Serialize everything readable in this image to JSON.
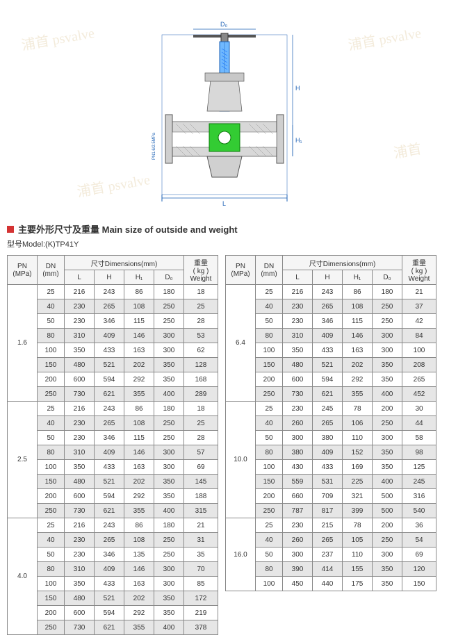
{
  "watermarks": [
    "浦首 psvalve",
    "浦首 psvalve",
    "浦首 psvalve",
    "浦首"
  ],
  "diagram": {
    "labels": {
      "L": "L",
      "H": "H",
      "H1": "H₁",
      "D0": "D₀",
      "pn": "PN1.6/2.5MPa"
    }
  },
  "heading": "主要外形尺寸及重量 Main size of outside and weight",
  "model_label": "型号Model:",
  "model_value": "(K)TP41Y",
  "table_headers": {
    "pn": "PN",
    "pn_unit": "(MPa)",
    "dn": "DN",
    "dn_unit": "(mm)",
    "dims": "尺寸Dimensions(mm)",
    "L": "L",
    "H": "H",
    "H1": "H₁",
    "D0": "D₀",
    "weight": "重量",
    "weight_unit": "( kg )",
    "weight_en": "Weight"
  },
  "left_groups": [
    {
      "pn": "1.6",
      "rows": [
        [
          "25",
          "216",
          "243",
          "86",
          "180",
          "18"
        ],
        [
          "40",
          "230",
          "265",
          "108",
          "250",
          "25"
        ],
        [
          "50",
          "230",
          "346",
          "115",
          "250",
          "28"
        ],
        [
          "80",
          "310",
          "409",
          "146",
          "300",
          "53"
        ],
        [
          "100",
          "350",
          "433",
          "163",
          "300",
          "62"
        ],
        [
          "150",
          "480",
          "521",
          "202",
          "350",
          "128"
        ],
        [
          "200",
          "600",
          "594",
          "292",
          "350",
          "168"
        ],
        [
          "250",
          "730",
          "621",
          "355",
          "400",
          "289"
        ]
      ]
    },
    {
      "pn": "2.5",
      "rows": [
        [
          "25",
          "216",
          "243",
          "86",
          "180",
          "18"
        ],
        [
          "40",
          "230",
          "265",
          "108",
          "250",
          "25"
        ],
        [
          "50",
          "230",
          "346",
          "115",
          "250",
          "28"
        ],
        [
          "80",
          "310",
          "409",
          "146",
          "300",
          "57"
        ],
        [
          "100",
          "350",
          "433",
          "163",
          "300",
          "69"
        ],
        [
          "150",
          "480",
          "521",
          "202",
          "350",
          "145"
        ],
        [
          "200",
          "600",
          "594",
          "292",
          "350",
          "188"
        ],
        [
          "250",
          "730",
          "621",
          "355",
          "400",
          "315"
        ]
      ]
    },
    {
      "pn": "4.0",
      "rows": [
        [
          "25",
          "216",
          "243",
          "86",
          "180",
          "21"
        ],
        [
          "40",
          "230",
          "265",
          "108",
          "250",
          "31"
        ],
        [
          "50",
          "230",
          "346",
          "135",
          "250",
          "35"
        ],
        [
          "80",
          "310",
          "409",
          "146",
          "300",
          "70"
        ],
        [
          "100",
          "350",
          "433",
          "163",
          "300",
          "85"
        ],
        [
          "150",
          "480",
          "521",
          "202",
          "350",
          "172"
        ],
        [
          "200",
          "600",
          "594",
          "292",
          "350",
          "219"
        ],
        [
          "250",
          "730",
          "621",
          "355",
          "400",
          "378"
        ]
      ]
    }
  ],
  "right_groups": [
    {
      "pn": "6.4",
      "rows": [
        [
          "25",
          "216",
          "243",
          "86",
          "180",
          "21"
        ],
        [
          "40",
          "230",
          "265",
          "108",
          "250",
          "37"
        ],
        [
          "50",
          "230",
          "346",
          "115",
          "250",
          "42"
        ],
        [
          "80",
          "310",
          "409",
          "146",
          "300",
          "84"
        ],
        [
          "100",
          "350",
          "433",
          "163",
          "300",
          "100"
        ],
        [
          "150",
          "480",
          "521",
          "202",
          "350",
          "208"
        ],
        [
          "200",
          "600",
          "594",
          "292",
          "350",
          "265"
        ],
        [
          "250",
          "730",
          "621",
          "355",
          "400",
          "452"
        ]
      ]
    },
    {
      "pn": "10.0",
      "rows": [
        [
          "25",
          "230",
          "245",
          "78",
          "200",
          "30"
        ],
        [
          "40",
          "260",
          "265",
          "106",
          "250",
          "44"
        ],
        [
          "50",
          "300",
          "380",
          "110",
          "300",
          "58"
        ],
        [
          "80",
          "380",
          "409",
          "152",
          "350",
          "98"
        ],
        [
          "100",
          "430",
          "433",
          "169",
          "350",
          "125"
        ],
        [
          "150",
          "559",
          "531",
          "225",
          "400",
          "245"
        ],
        [
          "200",
          "660",
          "709",
          "321",
          "500",
          "316"
        ],
        [
          "250",
          "787",
          "817",
          "399",
          "500",
          "540"
        ]
      ]
    },
    {
      "pn": "16.0",
      "rows": [
        [
          "25",
          "230",
          "215",
          "78",
          "200",
          "36"
        ],
        [
          "40",
          "260",
          "265",
          "105",
          "250",
          "54"
        ],
        [
          "50",
          "300",
          "237",
          "110",
          "300",
          "69"
        ],
        [
          "80",
          "390",
          "414",
          "155",
          "350",
          "120"
        ],
        [
          "100",
          "450",
          "440",
          "175",
          "350",
          "150"
        ]
      ]
    }
  ]
}
